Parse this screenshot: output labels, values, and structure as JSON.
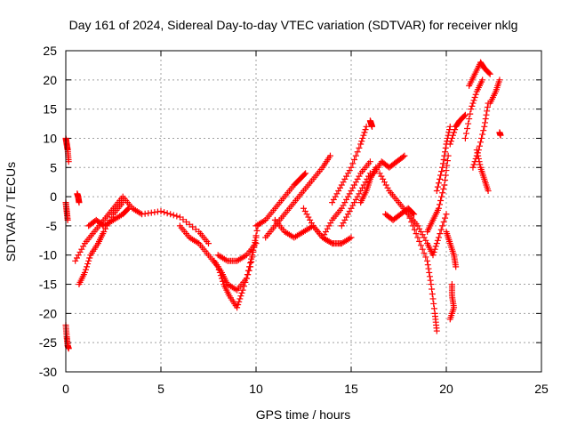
{
  "chart_data": {
    "type": "scatter",
    "title": "Day 161 of 2024, Sidereal Day-to-day VTEC variation (SDTVAR) for receiver nklg",
    "xlabel": "GPS time / hours",
    "ylabel": "SDTVAR / TECUs",
    "xlim": [
      0,
      25
    ],
    "ylim": [
      -30,
      25
    ],
    "xticks": [
      0,
      5,
      10,
      15,
      20,
      25
    ],
    "yticks": [
      -30,
      -25,
      -20,
      -15,
      -10,
      -5,
      0,
      5,
      10,
      15,
      20,
      25
    ],
    "grid": true,
    "marker": "+",
    "color": "#ff0000",
    "series": [
      {
        "name": "seg-0a",
        "x": [
          0.0,
          0.05,
          0.1,
          0.15
        ],
        "y": [
          10,
          9,
          8,
          6
        ]
      },
      {
        "name": "seg-0b",
        "x": [
          0.0,
          0.05,
          0.1
        ],
        "y": [
          -1,
          -2.5,
          -4
        ]
      },
      {
        "name": "seg-0c",
        "x": [
          0.0,
          0.05,
          0.1,
          0.15
        ],
        "y": [
          -22,
          -24,
          -25.5,
          -26
        ]
      },
      {
        "name": "seg-0d",
        "x": [
          0.6,
          0.65,
          0.7
        ],
        "y": [
          0.5,
          0,
          -1
        ]
      },
      {
        "name": "arc-1",
        "x": [
          0.5,
          1.0,
          1.5,
          2.0,
          2.5,
          3.0,
          3.5,
          4.0,
          5.0,
          6.0,
          7.0,
          7.5
        ],
        "y": [
          -11,
          -8,
          -6,
          -4,
          -2,
          0,
          -2,
          -3,
          -2.5,
          -3.5,
          -6,
          -8
        ]
      },
      {
        "name": "arc-2",
        "x": [
          0.7,
          1.0,
          1.3,
          1.7,
          2.0,
          2.5,
          3.0
        ],
        "y": [
          -15,
          -13,
          -10,
          -8,
          -6,
          -3,
          -1
        ]
      },
      {
        "name": "arc-3",
        "x": [
          1.2,
          1.6,
          2.0,
          2.5,
          3.0,
          3.3
        ],
        "y": [
          -5,
          -4,
          -5,
          -4,
          -3,
          -2
        ]
      },
      {
        "name": "arc-4",
        "x": [
          6.0,
          6.5,
          7.0,
          7.5,
          8.0,
          8.3,
          8.6,
          9.0,
          9.3,
          9.7,
          10.0
        ],
        "y": [
          -5,
          -7,
          -8,
          -10,
          -12,
          -15,
          -17,
          -19,
          -16,
          -12,
          -7
        ]
      },
      {
        "name": "arc-5",
        "x": [
          7.8,
          8.2,
          8.5,
          9.0,
          9.5,
          9.8,
          10.1
        ],
        "y": [
          -11,
          -13,
          -15,
          -16,
          -14,
          -10,
          -5
        ]
      },
      {
        "name": "arc-6",
        "x": [
          8.0,
          8.5,
          9.0,
          9.5,
          10.0
        ],
        "y": [
          -10,
          -11,
          -11,
          -10,
          -8
        ]
      },
      {
        "name": "arc-7",
        "x": [
          10.0,
          10.5,
          11.0,
          11.5,
          12.0,
          12.3,
          12.6
        ],
        "y": [
          -5,
          -4,
          -2,
          0,
          2,
          3,
          4
        ]
      },
      {
        "name": "arc-8",
        "x": [
          10.5,
          11.0,
          11.5,
          12.0,
          12.5,
          13.0,
          13.5,
          13.9
        ],
        "y": [
          -7,
          -5,
          -3,
          -1,
          1,
          3,
          5,
          7
        ]
      },
      {
        "name": "arc-9",
        "x": [
          11.0,
          11.5,
          12.0,
          12.5,
          13.0,
          13.5,
          14.0,
          14.5
        ],
        "y": [
          -4,
          -6,
          -7,
          -6,
          -5,
          -7,
          -8,
          -8
        ]
      },
      {
        "name": "arc-10",
        "x": [
          12.5,
          13.0,
          13.5,
          14.0,
          14.5,
          15.0
        ],
        "y": [
          -2,
          -5,
          -7,
          -8,
          -8,
          -7
        ]
      },
      {
        "name": "arc-11",
        "x": [
          13.5,
          14.0,
          14.5,
          15.0,
          15.5,
          16.0
        ],
        "y": [
          -7,
          -4,
          -2,
          1,
          4,
          6
        ]
      },
      {
        "name": "arc-12",
        "x": [
          14.0,
          14.5,
          15.0,
          15.5,
          15.8
        ],
        "y": [
          -1,
          2,
          5,
          9,
          12
        ]
      },
      {
        "name": "arc-13",
        "x": [
          14.5,
          15.0,
          15.5,
          16.0
        ],
        "y": [
          -5,
          -2,
          1,
          4
        ]
      },
      {
        "name": "arc-14",
        "x": [
          16.0,
          16.05,
          16.1
        ],
        "y": [
          13,
          12.5,
          12
        ]
      },
      {
        "name": "arc-15",
        "x": [
          15.5,
          15.8,
          16.0,
          16.3
        ],
        "y": [
          -1,
          1,
          3,
          5
        ]
      },
      {
        "name": "arc-16",
        "x": [
          16.2,
          16.6,
          17.0,
          17.4,
          17.8
        ],
        "y": [
          4,
          6,
          5,
          6,
          7
        ]
      },
      {
        "name": "arc-17",
        "x": [
          16.5,
          17.0,
          17.5,
          18.0,
          18.5,
          19.0,
          19.3,
          19.6,
          20.0
        ],
        "y": [
          4,
          1,
          -1,
          -3,
          -5,
          -8,
          -10,
          -7,
          -3
        ]
      },
      {
        "name": "arc-18",
        "x": [
          16.8,
          17.2,
          17.6,
          18.0,
          18.3
        ],
        "y": [
          -3,
          -4,
          -3,
          -2,
          -3
        ]
      },
      {
        "name": "arc-19",
        "x": [
          18.0,
          18.5,
          19.0,
          19.2,
          19.4,
          19.5
        ],
        "y": [
          -3,
          -7,
          -11,
          -15,
          -20,
          -23
        ]
      },
      {
        "name": "arc-20",
        "x": [
          19.0,
          19.3,
          19.6,
          19.9,
          20.1
        ],
        "y": [
          -6,
          -4,
          -2,
          2,
          7
        ]
      },
      {
        "name": "arc-21",
        "x": [
          19.5,
          19.8,
          20.0,
          20.2
        ],
        "y": [
          1,
          5,
          9,
          12
        ]
      },
      {
        "name": "arc-22",
        "x": [
          20.0,
          20.2,
          20.4,
          20.5
        ],
        "y": [
          -6,
          -8,
          -10,
          -12
        ]
      },
      {
        "name": "arc-23",
        "x": [
          20.2,
          20.5,
          20.7,
          21.0
        ],
        "y": [
          9,
          12,
          13,
          14
        ]
      },
      {
        "name": "arc-24",
        "x": [
          21.0,
          21.3,
          21.6,
          21.9
        ],
        "y": [
          10,
          15,
          18,
          20
        ]
      },
      {
        "name": "arc-25",
        "x": [
          21.2,
          21.5,
          21.8,
          22.0,
          22.3
        ],
        "y": [
          19,
          21,
          23,
          22,
          21
        ]
      },
      {
        "name": "arc-26",
        "x": [
          21.4,
          21.7,
          22.0,
          22.2
        ],
        "y": [
          5,
          8,
          12,
          16
        ]
      },
      {
        "name": "arc-27",
        "x": [
          21.6,
          21.8,
          22.0,
          22.2
        ],
        "y": [
          8,
          5,
          3,
          1
        ]
      },
      {
        "name": "arc-28",
        "x": [
          22.3,
          22.6,
          22.8
        ],
        "y": [
          16,
          18,
          20
        ]
      },
      {
        "name": "arc-29",
        "x": [
          22.8,
          22.85
        ],
        "y": [
          11,
          10.5
        ]
      },
      {
        "name": "isolated",
        "x": [
          20.3,
          20.3,
          20.4,
          20.2
        ],
        "y": [
          -15,
          -17,
          -19,
          -21
        ]
      }
    ]
  }
}
